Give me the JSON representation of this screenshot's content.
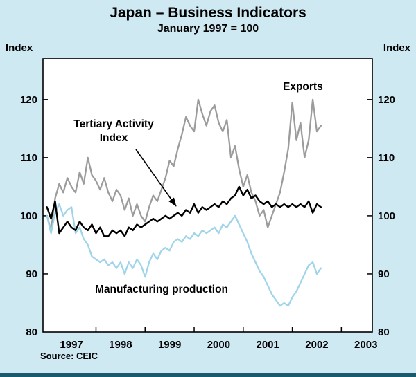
{
  "colors": {
    "page_background": "#cfe9f3",
    "plot_background": "#ffffff",
    "axis": "#000000",
    "footer_bar": "#1a5a6e"
  },
  "chart": {
    "title": "Japan – Business Indicators",
    "subtitle": "January 1997 = 100",
    "y_axis_label_left": "Index",
    "y_axis_label_right": "Index",
    "source": "Source: CEIC"
  },
  "annotations": {
    "exports": "Exports",
    "tertiary_line1": "Tertiary Activity",
    "tertiary_line2": "Index",
    "manufacturing": "Manufacturing production"
  },
  "chart_data": {
    "type": "line",
    "title": "Japan – Business Indicators",
    "subtitle": "January 1997 = 100",
    "xlabel": "",
    "ylabel": "Index",
    "x_start": "1997-01",
    "x_frequency": "monthly",
    "x_tick_labels": [
      "1997",
      "1998",
      "1999",
      "2000",
      "2001",
      "2002",
      "2003"
    ],
    "y_ticks": [
      80,
      90,
      100,
      110,
      120
    ],
    "ylim": [
      80,
      127
    ],
    "grid": false,
    "legend": "in-plot text annotations with arrow",
    "series": [
      {
        "name": "Exports",
        "color": "#9c9c9c",
        "width": 2.3,
        "values": [
          100,
          97.5,
          103,
          105.5,
          104,
          106.5,
          105,
          104,
          107.5,
          105.5,
          110,
          107,
          106,
          104.5,
          106.5,
          104,
          102.5,
          104.5,
          103.5,
          101,
          103,
          100,
          102,
          100,
          99,
          101.5,
          103.5,
          102.5,
          104.5,
          106.5,
          109.5,
          108.5,
          111.5,
          114,
          117,
          115.5,
          114.5,
          120,
          117.5,
          115.5,
          118,
          119,
          116,
          114.5,
          116.5,
          110,
          112,
          108,
          105,
          107,
          104,
          102.5,
          100,
          101,
          98,
          100,
          102,
          104,
          107.5,
          111.5,
          119.5,
          113,
          116,
          110,
          113,
          120,
          114.5,
          115.5
        ]
      },
      {
        "name": "Tertiary Activity Index",
        "color": "#000000",
        "width": 2.4,
        "values": [
          101.5,
          99.5,
          102.5,
          97,
          98,
          99,
          98,
          97.5,
          99,
          98,
          97.5,
          98.5,
          97,
          98,
          96.5,
          96.5,
          97.5,
          97,
          97.5,
          96.5,
          98,
          97.5,
          98.5,
          98,
          98.5,
          99,
          99.5,
          99,
          99.5,
          100,
          99.5,
          100,
          100.5,
          100,
          101,
          100.5,
          102,
          100.5,
          101.5,
          101,
          101.5,
          102,
          101.5,
          102.5,
          102,
          103,
          103.5,
          105,
          103.5,
          104.5,
          103,
          103.5,
          102.5,
          102,
          102.5,
          101.5,
          102,
          101.5,
          102,
          101.5,
          102,
          101.5,
          102,
          101.5,
          102.5,
          100.5,
          102,
          101.5
        ]
      },
      {
        "name": "Manufacturing production",
        "color": "#9fd4e9",
        "width": 2.3,
        "values": [
          100,
          97,
          100.5,
          102,
          100,
          101,
          101.5,
          97,
          98,
          96,
          95,
          93,
          92.5,
          92,
          92.5,
          91.5,
          92,
          91,
          92,
          90,
          92,
          91,
          92.5,
          91.5,
          89.5,
          92,
          93.5,
          92.5,
          94,
          94.5,
          94,
          95.5,
          96,
          95.5,
          96.5,
          96,
          97,
          96.5,
          97.5,
          97,
          97.5,
          98,
          97,
          98.5,
          98,
          99,
          100,
          98.5,
          97,
          95.5,
          93.5,
          92,
          90.5,
          89.5,
          88,
          86.5,
          85.5,
          84.5,
          85,
          84.5,
          86,
          87,
          88.5,
          90,
          91.5,
          92,
          90,
          91
        ]
      }
    ],
    "annotations": [
      {
        "text": "Exports",
        "target_series": "Exports"
      },
      {
        "text": "Tertiary Activity\nIndex",
        "target_series": "Tertiary Activity Index",
        "arrow": true
      },
      {
        "text": "Manufacturing production",
        "target_series": "Manufacturing production"
      }
    ]
  }
}
